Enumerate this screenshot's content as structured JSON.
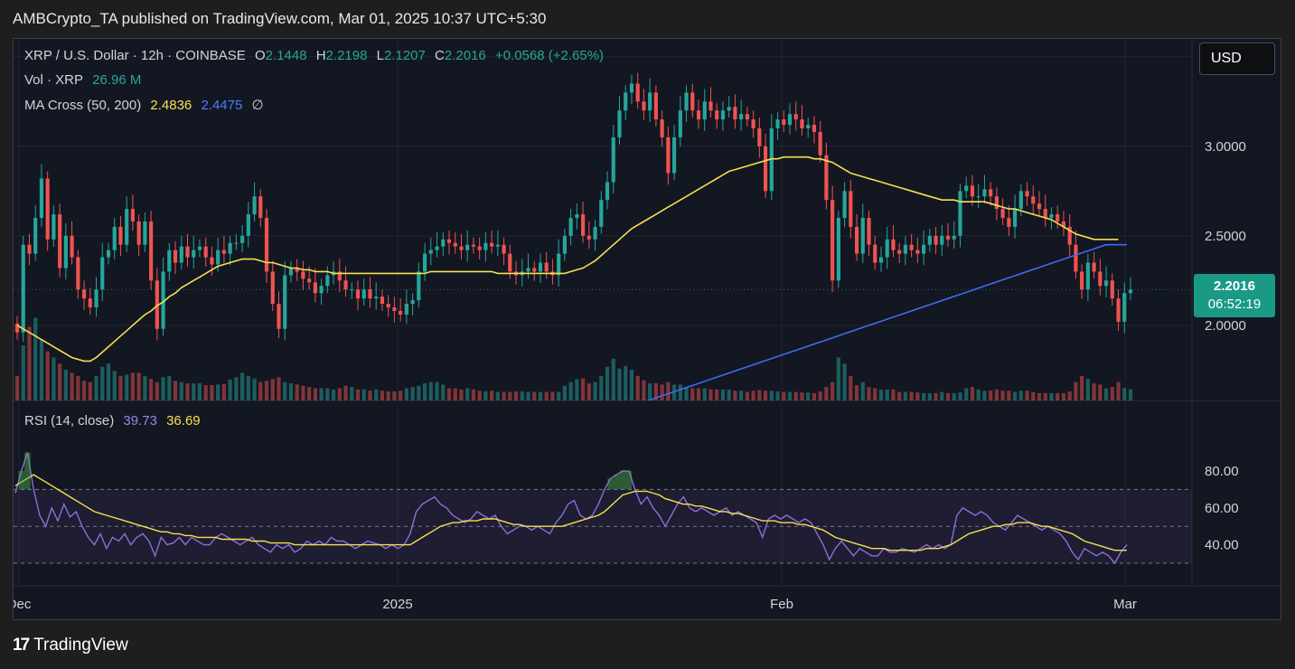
{
  "publisher_line": "AMBCrypto_TA published on TradingView.com, Mar 01, 2025 10:37 UTC+5:30",
  "legend": {
    "symbol": "XRP / U.S. Dollar · 12h · COINBASE",
    "o_label": "O",
    "o_val": "2.1448",
    "h_label": "H",
    "h_val": "2.2198",
    "l_label": "L",
    "l_val": "2.1207",
    "c_label": "C",
    "c_val": "2.2016",
    "change": "+0.0568 (+2.65%)",
    "vol_label": "Vol · XRP",
    "vol_val": "26.96 M",
    "ma_label": "MA Cross (50, 200)",
    "ma50": "2.4836",
    "ma200": "2.4475",
    "ma_icon": "∅",
    "rsi_label": "RSI (14, close)",
    "rsi_val": "39.73",
    "rsi_ma": "36.69"
  },
  "currency_button": "USD",
  "price_tag": {
    "price": "2.2016",
    "countdown": "06:52:19"
  },
  "footer_brand": "TradingView",
  "colors": {
    "up": "#26a69a",
    "down": "#ef5350",
    "ma50": "#f5e050",
    "ma200": "#3e6cf2",
    "rsi": "#8b6fd8",
    "rsi_ma": "#f5e050",
    "bg": "#131722"
  },
  "chart_data": {
    "type": "candlestick",
    "timeframe": "12h",
    "x_ticks": [
      "Dec",
      "2025",
      "Feb",
      "Mar"
    ],
    "y_ticks": [
      "3.0000",
      "2.5000",
      "2.0000"
    ],
    "ylim": [
      1.58,
      3.6
    ],
    "close": [
      1.96,
      2.45,
      2.4,
      2.6,
      2.82,
      2.48,
      2.62,
      2.32,
      2.5,
      2.38,
      2.2,
      2.15,
      2.1,
      2.2,
      2.38,
      2.42,
      2.55,
      2.45,
      2.65,
      2.58,
      2.45,
      2.58,
      2.25,
      1.98,
      2.3,
      2.42,
      2.35,
      2.44,
      2.38,
      2.42,
      2.44,
      2.38,
      2.34,
      2.42,
      2.4,
      2.46,
      2.46,
      2.5,
      2.62,
      2.72,
      2.6,
      2.3,
      2.12,
      1.98,
      2.28,
      2.32,
      2.3,
      2.26,
      2.24,
      2.18,
      2.22,
      2.28,
      2.3,
      2.25,
      2.2,
      2.2,
      2.15,
      2.2,
      2.15,
      2.16,
      2.12,
      2.1,
      2.08,
      2.06,
      2.12,
      2.14,
      2.3,
      2.4,
      2.42,
      2.44,
      2.48,
      2.46,
      2.44,
      2.42,
      2.45,
      2.44,
      2.42,
      2.46,
      2.44,
      2.45,
      2.4,
      2.3,
      2.28,
      2.3,
      2.32,
      2.3,
      2.35,
      2.3,
      2.28,
      2.4,
      2.5,
      2.6,
      2.62,
      2.5,
      2.48,
      2.55,
      2.7,
      2.8,
      3.05,
      3.2,
      3.3,
      3.35,
      3.25,
      3.2,
      3.3,
      3.15,
      3.05,
      2.85,
      3.05,
      3.2,
      3.3,
      3.2,
      3.15,
      3.25,
      3.2,
      3.15,
      3.2,
      3.22,
      3.15,
      3.18,
      3.15,
      3.1,
      3.0,
      2.75,
      3.1,
      3.15,
      3.12,
      3.18,
      3.15,
      3.1,
      3.12,
      3.08,
      2.95,
      2.7,
      2.25,
      2.6,
      2.75,
      2.55,
      2.4,
      2.6,
      2.45,
      2.35,
      2.38,
      2.48,
      2.42,
      2.4,
      2.45,
      2.42,
      2.4,
      2.45,
      2.5,
      2.45,
      2.5,
      2.48,
      2.5,
      2.75,
      2.78,
      2.72,
      2.72,
      2.76,
      2.72,
      2.65,
      2.6,
      2.55,
      2.65,
      2.75,
      2.72,
      2.68,
      2.65,
      2.6,
      2.62,
      2.58,
      2.55,
      2.45,
      2.3,
      2.2,
      2.35,
      2.3,
      2.22,
      2.25,
      2.15,
      2.02,
      2.18,
      2.2
    ],
    "volume": [
      40,
      90,
      120,
      135,
      100,
      80,
      70,
      60,
      50,
      45,
      40,
      32,
      30,
      40,
      55,
      60,
      48,
      40,
      42,
      45,
      45,
      40,
      35,
      30,
      38,
      40,
      32,
      30,
      28,
      28,
      28,
      25,
      25,
      26,
      27,
      34,
      38,
      45,
      40,
      36,
      30,
      32,
      35,
      38,
      30,
      28,
      26,
      24,
      22,
      20,
      20,
      20,
      18,
      20,
      24,
      22,
      18,
      18,
      16,
      18,
      16,
      15,
      15,
      16,
      20,
      22,
      24,
      28,
      30,
      30,
      26,
      20,
      20,
      18,
      20,
      18,
      16,
      15,
      16,
      14,
      14,
      14,
      15,
      15,
      14,
      14,
      14,
      14,
      14,
      14,
      24,
      30,
      35,
      36,
      28,
      30,
      40,
      55,
      68,
      52,
      56,
      50,
      40,
      33,
      28,
      28,
      26,
      30,
      26,
      26,
      22,
      20,
      20,
      20,
      18,
      18,
      18,
      18,
      16,
      16,
      14,
      16,
      17,
      16,
      16,
      15,
      14,
      14,
      14,
      13,
      13,
      12,
      15,
      22,
      30,
      70,
      60,
      40,
      25,
      30,
      22,
      20,
      18,
      18,
      18,
      14,
      14,
      14,
      13,
      12,
      12,
      12,
      14,
      12,
      12,
      13,
      20,
      22,
      18,
      16,
      16,
      18,
      16,
      16,
      14,
      16,
      16,
      14,
      12,
      12,
      12,
      12,
      12,
      15,
      30,
      40,
      35,
      28,
      26,
      20,
      22,
      30,
      20,
      18
    ],
    "ma50": [
      2.0,
      1.98,
      1.96,
      1.94,
      1.92,
      1.9,
      1.88,
      1.86,
      1.84,
      1.82,
      1.81,
      1.8,
      1.8,
      1.82,
      1.85,
      1.88,
      1.91,
      1.94,
      1.97,
      2.0,
      2.03,
      2.06,
      2.08,
      2.11,
      2.13,
      2.16,
      2.18,
      2.21,
      2.23,
      2.25,
      2.27,
      2.29,
      2.31,
      2.33,
      2.34,
      2.35,
      2.36,
      2.37,
      2.37,
      2.37,
      2.36,
      2.35,
      2.35,
      2.34,
      2.33,
      2.32,
      2.32,
      2.31,
      2.31,
      2.3,
      2.3,
      2.3,
      2.29,
      2.29,
      2.29,
      2.29,
      2.29,
      2.29,
      2.29,
      2.29,
      2.29,
      2.29,
      2.29,
      2.29,
      2.29,
      2.29,
      2.29,
      2.29,
      2.3,
      2.3,
      2.3,
      2.3,
      2.3,
      2.3,
      2.3,
      2.3,
      2.3,
      2.3,
      2.3,
      2.29,
      2.29,
      2.29,
      2.29,
      2.29,
      2.29,
      2.29,
      2.29,
      2.29,
      2.29,
      2.29,
      2.29,
      2.3,
      2.31,
      2.32,
      2.34,
      2.36,
      2.39,
      2.42,
      2.45,
      2.48,
      2.51,
      2.54,
      2.56,
      2.58,
      2.6,
      2.62,
      2.64,
      2.66,
      2.68,
      2.7,
      2.72,
      2.74,
      2.76,
      2.78,
      2.8,
      2.82,
      2.84,
      2.86,
      2.87,
      2.88,
      2.89,
      2.9,
      2.91,
      2.92,
      2.93,
      2.93,
      2.94,
      2.94,
      2.94,
      2.94,
      2.94,
      2.93,
      2.93,
      2.92,
      2.91,
      2.89,
      2.87,
      2.85,
      2.84,
      2.83,
      2.82,
      2.81,
      2.8,
      2.79,
      2.78,
      2.77,
      2.76,
      2.75,
      2.74,
      2.73,
      2.72,
      2.71,
      2.7,
      2.7,
      2.7,
      2.69,
      2.69,
      2.69,
      2.69,
      2.69,
      2.68,
      2.67,
      2.66,
      2.65,
      2.65,
      2.64,
      2.63,
      2.62,
      2.61,
      2.6,
      2.59,
      2.57,
      2.55,
      2.53,
      2.51,
      2.5,
      2.49,
      2.48,
      2.48,
      2.48,
      2.48,
      2.48
    ],
    "ma200": [
      1.49,
      1.5,
      1.51,
      1.52,
      1.53,
      1.54,
      1.55,
      1.56,
      1.57,
      1.58,
      1.59,
      1.6,
      1.61,
      1.62,
      1.63,
      1.64,
      1.65,
      1.66,
      1.67,
      1.68,
      1.69,
      1.7,
      1.71,
      1.72,
      1.73,
      1.74,
      1.75,
      1.76,
      1.77,
      1.78,
      1.79,
      1.8,
      1.81,
      1.82,
      1.83,
      1.84,
      1.85,
      1.86,
      1.87,
      1.88,
      1.89,
      1.9,
      1.91,
      1.92,
      1.93,
      1.94,
      1.95,
      1.96,
      1.97,
      1.98,
      1.99,
      2.0,
      2.01,
      2.02,
      2.03,
      2.04,
      2.05,
      2.06,
      2.07,
      2.08,
      2.09,
      2.1,
      2.11,
      2.12,
      2.13,
      2.14,
      2.15,
      2.16,
      2.17,
      2.18,
      2.19,
      2.2,
      2.21,
      2.22,
      2.23,
      2.24,
      2.25,
      2.26,
      2.27,
      2.28,
      2.29,
      2.3,
      2.31,
      2.32,
      2.33,
      2.34,
      2.35,
      2.36,
      2.37,
      2.38,
      2.39,
      2.4,
      2.41,
      2.42,
      2.43,
      2.44,
      2.45,
      2.45,
      2.45,
      2.45,
      2.45
    ],
    "rsi": [
      68,
      80,
      90,
      70,
      56,
      50,
      60,
      53,
      62,
      55,
      58,
      50,
      44,
      40,
      46,
      38,
      44,
      42,
      46,
      40,
      44,
      46,
      42,
      34,
      44,
      40,
      41,
      44,
      40,
      44,
      42,
      40,
      40,
      44,
      46,
      44,
      42,
      40,
      42,
      44,
      40,
      38,
      36,
      40,
      38,
      40,
      36,
      38,
      42,
      40,
      42,
      40,
      44,
      42,
      42,
      40,
      38,
      40,
      42,
      41,
      40,
      38,
      40,
      38,
      40,
      46,
      58,
      62,
      64,
      66,
      62,
      60,
      56,
      54,
      52,
      54,
      58,
      56,
      54,
      56,
      50,
      46,
      48,
      50,
      50,
      48,
      50,
      48,
      46,
      52,
      56,
      62,
      64,
      56,
      54,
      56,
      62,
      70,
      76,
      78,
      80,
      80,
      70,
      62,
      66,
      60,
      56,
      50,
      56,
      62,
      66,
      60,
      58,
      60,
      58,
      56,
      58,
      60,
      56,
      58,
      56,
      54,
      52,
      44,
      54,
      56,
      54,
      56,
      54,
      52,
      54,
      52,
      46,
      40,
      32,
      38,
      42,
      38,
      34,
      38,
      36,
      34,
      34,
      38,
      36,
      36,
      38,
      37,
      36,
      38,
      40,
      38,
      40,
      38,
      40,
      56,
      60,
      58,
      56,
      58,
      56,
      52,
      50,
      48,
      52,
      56,
      54,
      52,
      50,
      48,
      50,
      48,
      46,
      42,
      36,
      32,
      38,
      36,
      34,
      36,
      34,
      30,
      36,
      40
    ],
    "rsi_ma": [
      72,
      74,
      76,
      78,
      76,
      74,
      72,
      70,
      68,
      66,
      64,
      62,
      60,
      58,
      57,
      56,
      55,
      54,
      53,
      52,
      51,
      50,
      49,
      48,
      47,
      47,
      46,
      46,
      45,
      45,
      44,
      44,
      44,
      44,
      43,
      43,
      43,
      43,
      43,
      42,
      42,
      42,
      41,
      41,
      41,
      41,
      40,
      40,
      40,
      40,
      40,
      40,
      40,
      40,
      40,
      40,
      40,
      40,
      40,
      40,
      40,
      40,
      40,
      40,
      40,
      40,
      42,
      44,
      46,
      48,
      50,
      51,
      52,
      52,
      53,
      53,
      53,
      54,
      54,
      54,
      53,
      52,
      51,
      51,
      50,
      50,
      50,
      50,
      50,
      50,
      50,
      51,
      52,
      53,
      54,
      55,
      56,
      58,
      61,
      64,
      67,
      68,
      69,
      69,
      69,
      68,
      67,
      65,
      64,
      63,
      62,
      62,
      61,
      61,
      60,
      59,
      58,
      58,
      57,
      57,
      56,
      55,
      54,
      53,
      53,
      53,
      52,
      52,
      52,
      51,
      51,
      50,
      49,
      48,
      46,
      44,
      43,
      42,
      41,
      40,
      39,
      38,
      38,
      38,
      37,
      37,
      37,
      37,
      37,
      37,
      38,
      38,
      38,
      39,
      40,
      42,
      44,
      46,
      47,
      48,
      49,
      50,
      50,
      51,
      51,
      52,
      52,
      52,
      51,
      50,
      50,
      49,
      48,
      47,
      46,
      44,
      42,
      41,
      40,
      39,
      38,
      37,
      37,
      37
    ]
  }
}
